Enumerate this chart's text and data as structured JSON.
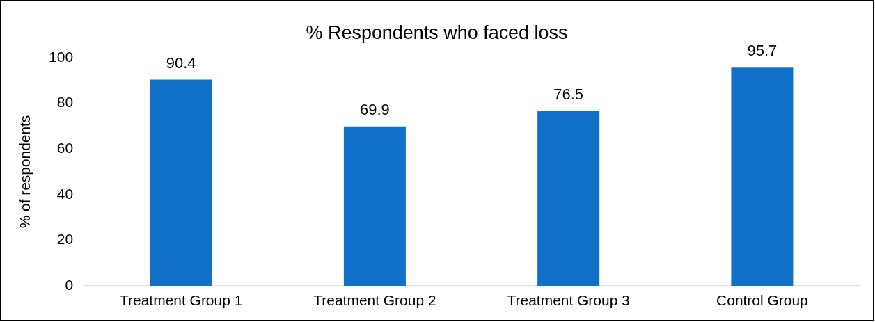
{
  "chart_data": {
    "type": "bar",
    "title": "% Respondents who faced loss",
    "ylabel": "% of respondents",
    "categories": [
      "Treatment Group 1",
      "Treatment Group 2",
      "Treatment Group 3",
      "Control Group"
    ],
    "values": [
      90.4,
      69.9,
      76.5,
      95.7
    ],
    "color": "#1170c8",
    "ylim": [
      0,
      100
    ],
    "yticks": [
      0,
      20,
      40,
      60,
      80,
      100
    ],
    "grid": false,
    "legend": false,
    "data_labels": true
  }
}
